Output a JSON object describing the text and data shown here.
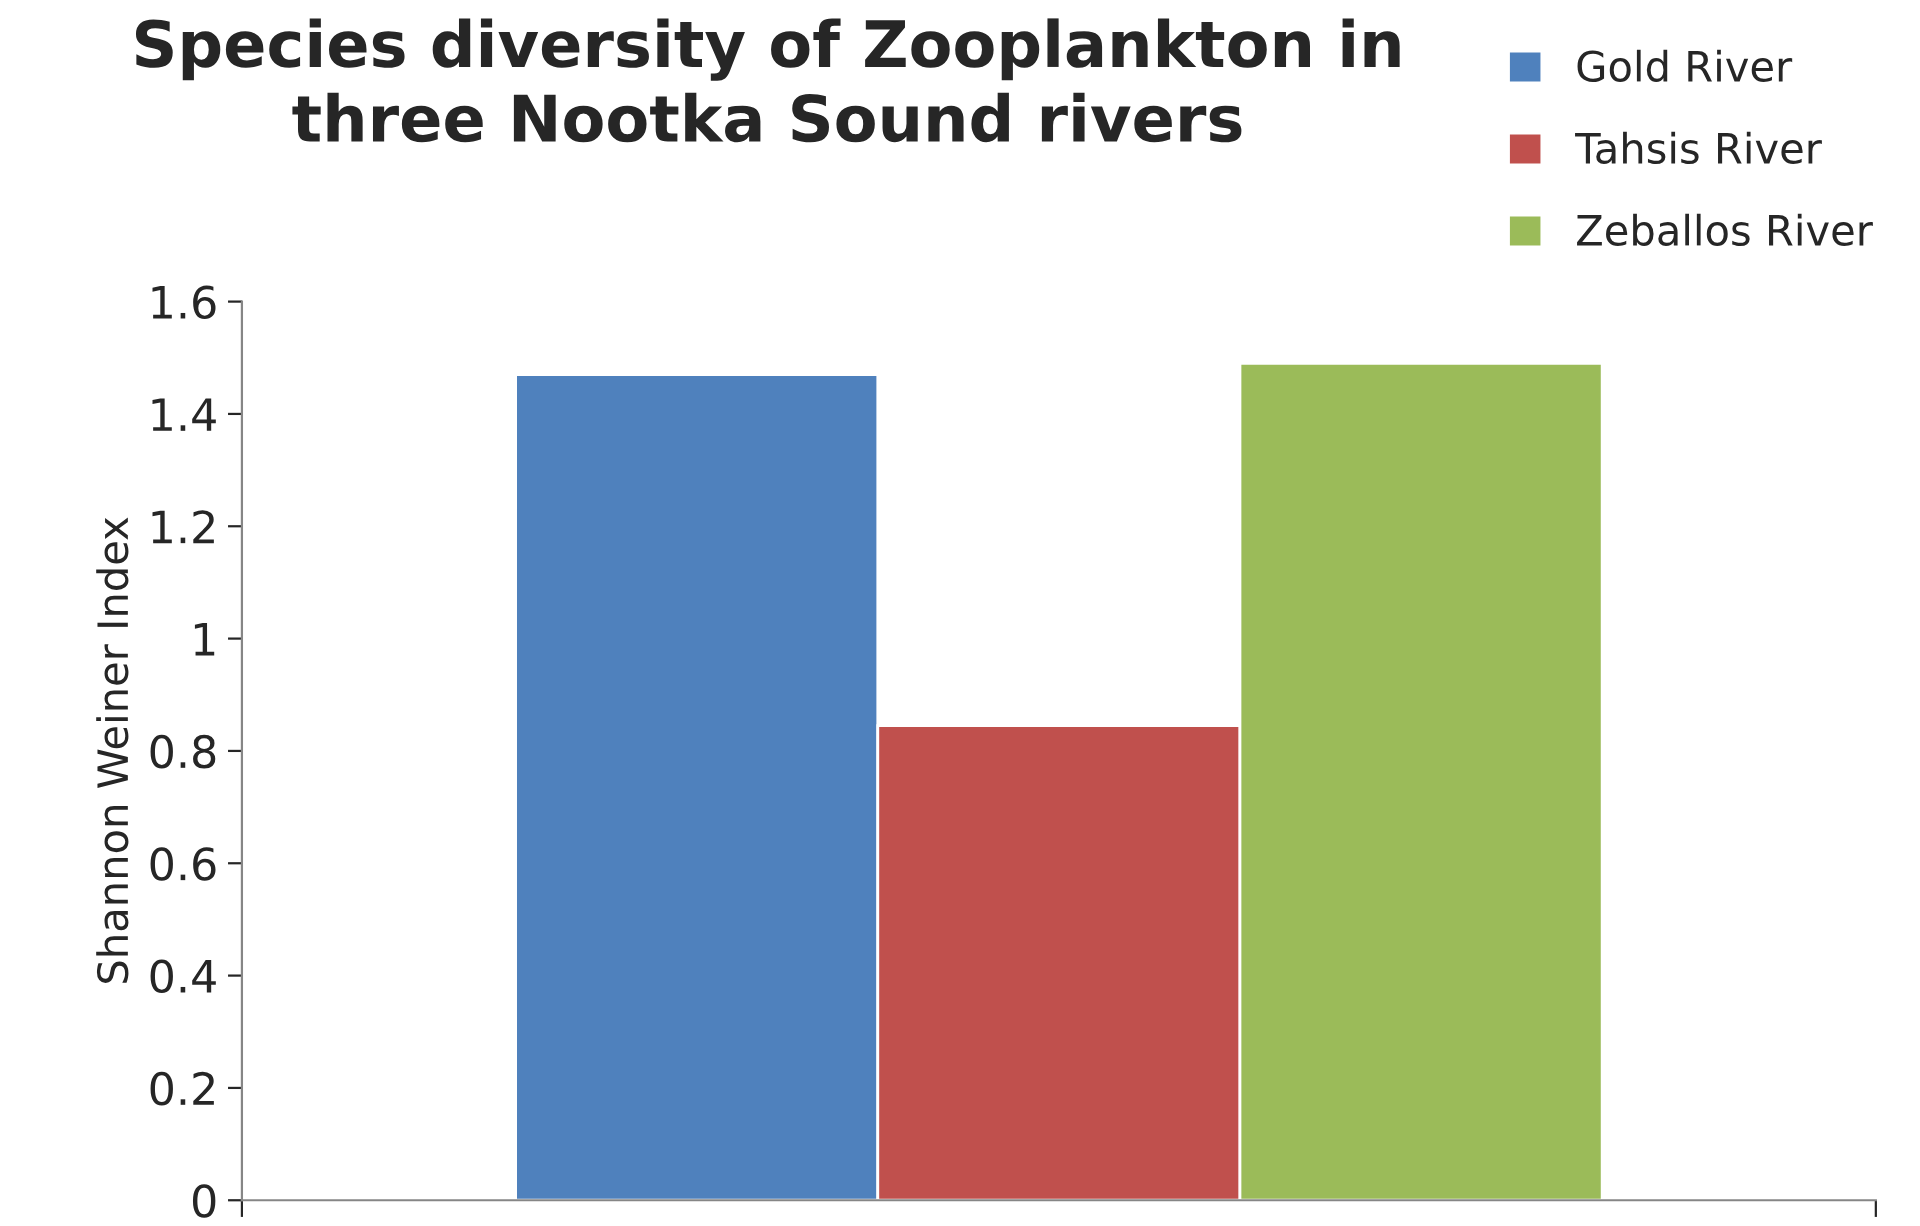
{
  "chart_data": {
    "type": "bar",
    "title": "Species diversity of Zooplankton in\nthree Nootka Sound rivers",
    "ylabel": "Shannon Weiner Index",
    "categories": [
      null
    ],
    "series": [
      {
        "name": "Gold River",
        "color": "#4f81bd",
        "values": [
          1.47
        ]
      },
      {
        "name": "Tahsis River",
        "color": "#c0504d",
        "values": [
          0.845
        ]
      },
      {
        "name": "Zeballos River",
        "color": "#9bbb59",
        "values": [
          1.49
        ]
      }
    ],
    "ylim": [
      0,
      1.6
    ],
    "yticks": [
      0,
      0.2,
      0.4,
      0.6,
      0.8,
      1,
      1.2,
      1.4,
      1.6
    ],
    "grid": false,
    "legend": "top right"
  }
}
